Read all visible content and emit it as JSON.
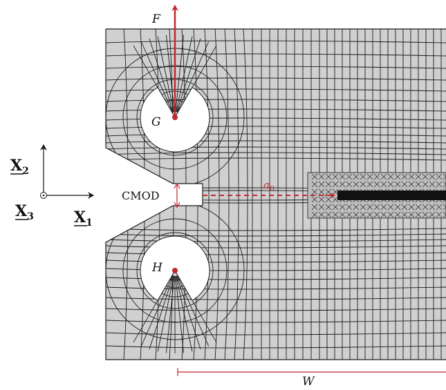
{
  "labels": {
    "force": "F",
    "pin_top": "G",
    "pin_bottom": "H",
    "crack_length": "a",
    "crack_length_sub": "0",
    "cmod": "CMOD",
    "width": "W"
  },
  "axes": {
    "x1": "X",
    "x1_sub": "1",
    "x2": "X",
    "x2_sub": "2",
    "x3": "X",
    "x3_sub": "3"
  },
  "colors": {
    "mesh_fill": "#d0d0d0",
    "mesh_line": "#1a1a1a",
    "accent_red": "#c0282e",
    "refined_band": "#111111"
  }
}
